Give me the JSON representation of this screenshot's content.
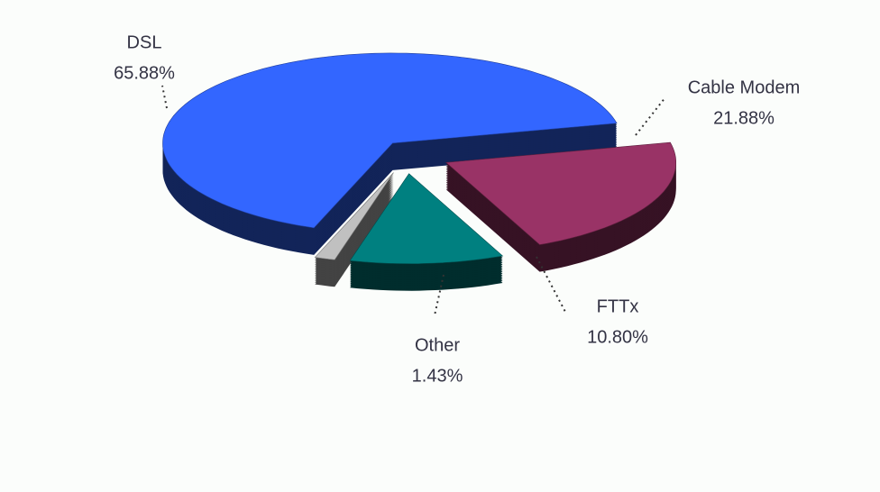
{
  "chart_data": {
    "type": "pie3d",
    "categories": [
      "DSL",
      "Cable Modem",
      "FTTx",
      "Other"
    ],
    "values": [
      65.88,
      21.88,
      10.8,
      1.43
    ],
    "value_labels": [
      "65.88%",
      "21.88%",
      "10.80%",
      "1.43%"
    ],
    "colors": [
      "#3366ff",
      "#993366",
      "#008080",
      "#c0c0c0"
    ]
  }
}
